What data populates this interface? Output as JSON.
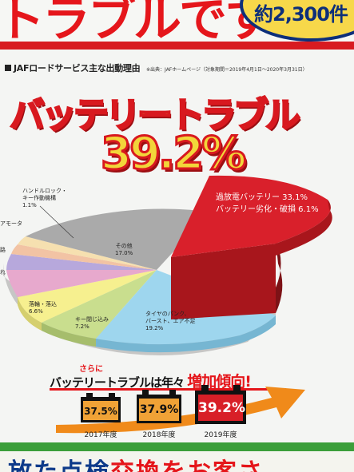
{
  "header": {
    "headline": "トラブルです!",
    "corner_text": "約2,300件"
  },
  "subhead": {
    "title": "JAFロードサービス主な出動理由",
    "source": "※出典：JAFホームページ（対象期間＝2019年4月1日～2020年3月31日）"
  },
  "hero": {
    "title": "バッテリートラブル",
    "percent": "39.2%"
  },
  "colors": {
    "red": "#d9202b",
    "gray": "#aaaaaa",
    "cyan": "#9ed6ee",
    "green": "#c9de8e",
    "yellow": "#f6f08f",
    "accent": "#e5161b"
  },
  "chart_data": {
    "type": "pie",
    "slices": [
      {
        "label": "過放電バッテリー 33.1%",
        "value": 33.1,
        "color": "#d9202b"
      },
      {
        "label": "バッテリー劣化・破損 6.1%",
        "value": 6.1,
        "color": "#d9202b"
      },
      {
        "label": "タイヤのパンク、バースト、エア不足",
        "value": 19.2,
        "color": "#9ed6ee"
      },
      {
        "label": "キー閉じ込み",
        "value": 7.2,
        "color": "#c9de8e"
      },
      {
        "label": "落輪・落込",
        "value": 6.6,
        "color": "#f6f08f"
      },
      {
        "label": "れ",
        "color": "#e7a9cd"
      },
      {
        "label": "路",
        "color": "#b7a8dc"
      },
      {
        "label": "アモータ",
        "color": "#f2c3a4"
      },
      {
        "label": "ハンドルロック・キー作動機構",
        "value": 1.1,
        "color": "#f6e0b0"
      },
      {
        "label": "その他",
        "value": 17.0,
        "color": "#aaaaaa"
      }
    ]
  },
  "pie_labels": {
    "red": "過放電バッテリー 33.1%\nバッテリー劣化・破損 6.1%",
    "other": "その他\n17.0%",
    "tire": "タイヤのパンク、\nバースト、エア不足\n19.2%",
    "key": "キー閉じ込み\n7.2%",
    "wheel": "落輪・落込\n6.6%",
    "handle": "ハンドルロック・\nキー作動機構\n1.1%",
    "motor": "アモータ",
    "road": "路",
    "other_cut": "れ"
  },
  "trend": {
    "pre": "さらに",
    "main": "バッテリートラブルは年々",
    "accent": "増加傾向!",
    "years": [
      {
        "year": "2017年度",
        "value": "37.5%"
      },
      {
        "year": "2018年度",
        "value": "37.9%"
      },
      {
        "year": "2019年度",
        "value": "39.2%"
      }
    ]
  },
  "bottom": {
    "text_main": "放た点検",
    "text_accent": "交換",
    "text_tail": "をお客さ"
  }
}
